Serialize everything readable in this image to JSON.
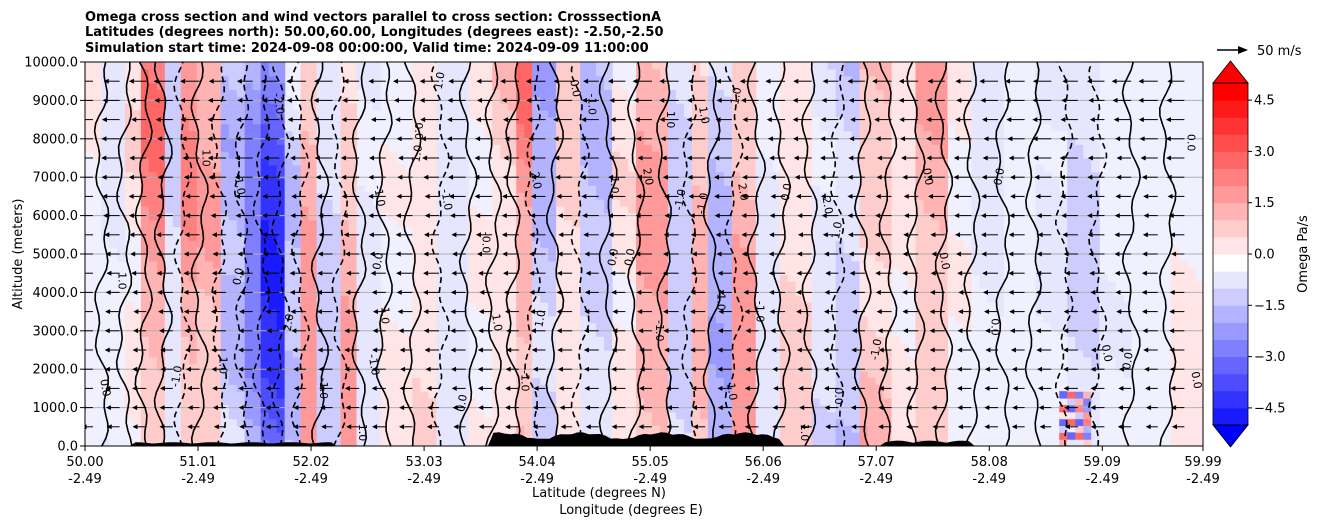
{
  "chart_data": {
    "type": "heatmap",
    "title_lines": [
      "Omega cross section and wind vectors parallel to cross section: CrosssectionA",
      "Latitudes (degrees north): 50.00,60.00, Longitudes (degrees east): -2.50,-2.50",
      "Simulation start time: 2024-09-08 00:00:00, Valid time: 2024-09-09 11:00:00"
    ],
    "xlabel_lines": [
      "Latitude (degrees N)",
      "Longitude (degrees E)"
    ],
    "ylabel": "Altitude (meters)",
    "xlim": [
      50.0,
      59.99
    ],
    "ylim": [
      0,
      10000
    ],
    "xticks": [
      {
        "lat": "50.00",
        "lon": "-2.49",
        "value": 50.0
      },
      {
        "lat": "51.01",
        "lon": "-2.49",
        "value": 51.01
      },
      {
        "lat": "52.02",
        "lon": "-2.49",
        "value": 52.02
      },
      {
        "lat": "53.03",
        "lon": "-2.49",
        "value": 53.03
      },
      {
        "lat": "54.04",
        "lon": "-2.49",
        "value": 54.04
      },
      {
        "lat": "55.05",
        "lon": "-2.49",
        "value": 55.05
      },
      {
        "lat": "56.06",
        "lon": "-2.49",
        "value": 56.06
      },
      {
        "lat": "57.07",
        "lon": "-2.49",
        "value": 57.07
      },
      {
        "lat": "58.08",
        "lon": "-2.49",
        "value": 58.08
      },
      {
        "lat": "59.09",
        "lon": "-2.49",
        "value": 59.09
      },
      {
        "lat": "59.99",
        "lon": "-2.49",
        "value": 59.99
      }
    ],
    "yticks": [
      {
        "label": "0.0",
        "value": 0
      },
      {
        "label": "1000.0",
        "value": 1000
      },
      {
        "label": "2000.0",
        "value": 2000
      },
      {
        "label": "3000.0",
        "value": 3000
      },
      {
        "label": "4000.0",
        "value": 4000
      },
      {
        "label": "5000.0",
        "value": 5000
      },
      {
        "label": "6000.0",
        "value": 6000
      },
      {
        "label": "7000.0",
        "value": 7000
      },
      {
        "label": "8000.0",
        "value": 8000
      },
      {
        "label": "9000.0",
        "value": 9000
      },
      {
        "label": "10000.0",
        "value": 10000
      }
    ],
    "grid": "horizontal",
    "colorbar": {
      "label": "Omega Pa/s",
      "range": [
        -5,
        5
      ],
      "ticks": [
        {
          "label": "4.5",
          "value": 4.5
        },
        {
          "label": "3.0",
          "value": 3.0
        },
        {
          "label": "1.5",
          "value": 1.5
        },
        {
          "label": "0.0",
          "value": 0.0
        },
        {
          "label": "−1.5",
          "value": -1.5
        },
        {
          "label": "−3.0",
          "value": -3.0
        },
        {
          "label": "−4.5",
          "value": -4.5
        }
      ],
      "extend": "both",
      "low_color": "#0000ff",
      "mid_color": "#ffffff",
      "high_color": "#ff0000"
    },
    "quiver_key": {
      "label": "50 m/s",
      "value": 50
    },
    "omega_bands": [
      {
        "lat": 50.05,
        "omega": 0.3
      },
      {
        "lat": 50.25,
        "omega": -0.4
      },
      {
        "lat": 50.45,
        "omega": 0.6
      },
      {
        "lat": 50.6,
        "omega": 2.6
      },
      {
        "lat": 50.8,
        "omega": -0.8
      },
      {
        "lat": 50.95,
        "omega": 2.2
      },
      {
        "lat": 51.1,
        "omega": 1.6
      },
      {
        "lat": 51.3,
        "omega": -1.4
      },
      {
        "lat": 51.5,
        "omega": -2.5
      },
      {
        "lat": 51.65,
        "omega": -4.0
      },
      {
        "lat": 51.85,
        "omega": -1.2
      },
      {
        "lat": 52.0,
        "omega": 2.0
      },
      {
        "lat": 52.2,
        "omega": -1.0
      },
      {
        "lat": 52.35,
        "omega": 1.8
      },
      {
        "lat": 52.55,
        "omega": -0.6
      },
      {
        "lat": 52.8,
        "omega": 0.4
      },
      {
        "lat": 53.05,
        "omega": 0.8
      },
      {
        "lat": 53.3,
        "omega": -0.8
      },
      {
        "lat": 53.55,
        "omega": 0.5
      },
      {
        "lat": 53.75,
        "omega": 1.2
      },
      {
        "lat": 53.9,
        "omega": 2.8
      },
      {
        "lat": 54.1,
        "omega": -1.8
      },
      {
        "lat": 54.3,
        "omega": 0.9
      },
      {
        "lat": 54.55,
        "omega": -1.2
      },
      {
        "lat": 54.8,
        "omega": 0.5
      },
      {
        "lat": 55.05,
        "omega": 1.8
      },
      {
        "lat": 55.3,
        "omega": -1.0
      },
      {
        "lat": 55.5,
        "omega": 1.4
      },
      {
        "lat": 55.7,
        "omega": -1.6
      },
      {
        "lat": 55.9,
        "omega": 2.0
      },
      {
        "lat": 56.1,
        "omega": -0.5
      },
      {
        "lat": 56.35,
        "omega": 1.0
      },
      {
        "lat": 56.6,
        "omega": -0.9
      },
      {
        "lat": 56.85,
        "omega": -1.5
      },
      {
        "lat": 57.05,
        "omega": 1.8
      },
      {
        "lat": 57.3,
        "omega": 0.6
      },
      {
        "lat": 57.55,
        "omega": 2.0
      },
      {
        "lat": 57.8,
        "omega": 0.3
      },
      {
        "lat": 58.05,
        "omega": -0.4
      },
      {
        "lat": 58.35,
        "omega": 0.2
      },
      {
        "lat": 58.6,
        "omega": -0.3
      },
      {
        "lat": 58.9,
        "omega": -0.8
      },
      {
        "lat": 59.2,
        "omega": -0.2
      },
      {
        "lat": 59.5,
        "omega": 0.1
      },
      {
        "lat": 59.85,
        "omega": 0.3
      }
    ],
    "contour_labels": [
      {
        "text": "1.0",
        "lat": 50.3,
        "alt": 4300
      },
      {
        "text": "0.0",
        "lat": 50.15,
        "alt": 1500
      },
      {
        "text": "-1.0",
        "lat": 50.85,
        "alt": 1800
      },
      {
        "text": "1.0",
        "lat": 51.05,
        "alt": 7500
      },
      {
        "text": "-1.0",
        "lat": 51.35,
        "alt": 6800
      },
      {
        "text": "0.0",
        "lat": 51.4,
        "alt": 4400
      },
      {
        "text": "1.0",
        "lat": 51.2,
        "alt": 2100
      },
      {
        "text": "-2.0",
        "lat": 51.7,
        "alt": 8900
      },
      {
        "text": "2.0",
        "lat": 51.85,
        "alt": 3200
      },
      {
        "text": "-1.0",
        "lat": 52.1,
        "alt": 1500
      },
      {
        "text": "-1.0",
        "lat": 52.6,
        "alt": 6500
      },
      {
        "text": "0.0",
        "lat": 52.65,
        "alt": 4800
      },
      {
        "text": "1.0",
        "lat": 52.65,
        "alt": 3400
      },
      {
        "text": "-1.0",
        "lat": 52.55,
        "alt": 2100
      },
      {
        "text": "1.0",
        "lat": 53.0,
        "alt": 7600
      },
      {
        "text": "0.0",
        "lat": 52.95,
        "alt": 8200
      },
      {
        "text": "-1.0",
        "lat": 53.2,
        "alt": 6400
      },
      {
        "text": "1.0",
        "lat": 53.2,
        "alt": 9500
      },
      {
        "text": "-0.0",
        "lat": 53.55,
        "alt": 5300
      },
      {
        "text": "1.0",
        "lat": 53.65,
        "alt": 3200
      },
      {
        "text": "0.0",
        "lat": 53.4,
        "alt": 1100
      },
      {
        "text": "-1.0",
        "lat": 53.9,
        "alt": 1700
      },
      {
        "text": "2.0",
        "lat": 54.0,
        "alt": 6900
      },
      {
        "text": "1.0",
        "lat": 54.1,
        "alt": 3300
      },
      {
        "text": "-1.0",
        "lat": 54.5,
        "alt": 8900
      },
      {
        "text": "0.0",
        "lat": 54.35,
        "alt": 9300
      },
      {
        "text": "0.0",
        "lat": 54.75,
        "alt": 4900
      },
      {
        "text": "1.0",
        "lat": 54.7,
        "alt": 6800
      },
      {
        "text": "2.0",
        "lat": 55.0,
        "alt": 7000
      },
      {
        "text": "-1.0",
        "lat": 55.35,
        "alt": 6400
      },
      {
        "text": "1.0",
        "lat": 55.2,
        "alt": 8500
      },
      {
        "text": "1.0",
        "lat": 55.5,
        "alt": 8600
      },
      {
        "text": "-1.0",
        "lat": 55.55,
        "alt": 6300
      },
      {
        "text": "-1.0",
        "lat": 55.1,
        "alt": 3000
      },
      {
        "text": "2.0",
        "lat": 55.85,
        "alt": 6600
      },
      {
        "text": "1.0",
        "lat": 55.85,
        "alt": 9100
      },
      {
        "text": "-1.0",
        "lat": 55.65,
        "alt": 3800
      },
      {
        "text": "1.0",
        "lat": 55.75,
        "alt": 1400
      },
      {
        "text": "0.0",
        "lat": 56.3,
        "alt": 6600
      },
      {
        "text": "-1.0",
        "lat": 56.0,
        "alt": 3500
      },
      {
        "text": "-2.0",
        "lat": 56.6,
        "alt": 6300
      },
      {
        "text": "1.0",
        "lat": 56.75,
        "alt": 5600
      },
      {
        "text": "0.0",
        "lat": 56.7,
        "alt": 1300
      },
      {
        "text": "0.0",
        "lat": 57.5,
        "alt": 7000
      },
      {
        "text": "-1.0",
        "lat": 57.1,
        "alt": 2500
      },
      {
        "text": "1.0",
        "lat": 56.4,
        "alt": 350
      },
      {
        "text": "0.0",
        "lat": 57.65,
        "alt": 4800
      },
      {
        "text": "0.0",
        "lat": 58.2,
        "alt": 7000
      },
      {
        "text": "0.0",
        "lat": 58.1,
        "alt": 3100
      },
      {
        "text": "0.0",
        "lat": 59.1,
        "alt": 2400
      },
      {
        "text": "0.0",
        "lat": 59.35,
        "alt": 2200
      },
      {
        "text": "0.0",
        "lat": 59.85,
        "alt": 7900
      },
      {
        "text": "0.0",
        "lat": 59.9,
        "alt": 1700
      },
      {
        "text": "0.0",
        "lat": 54.9,
        "alt": 4900
      },
      {
        "text": "1.0",
        "lat": 52.45,
        "alt": 350
      }
    ]
  }
}
